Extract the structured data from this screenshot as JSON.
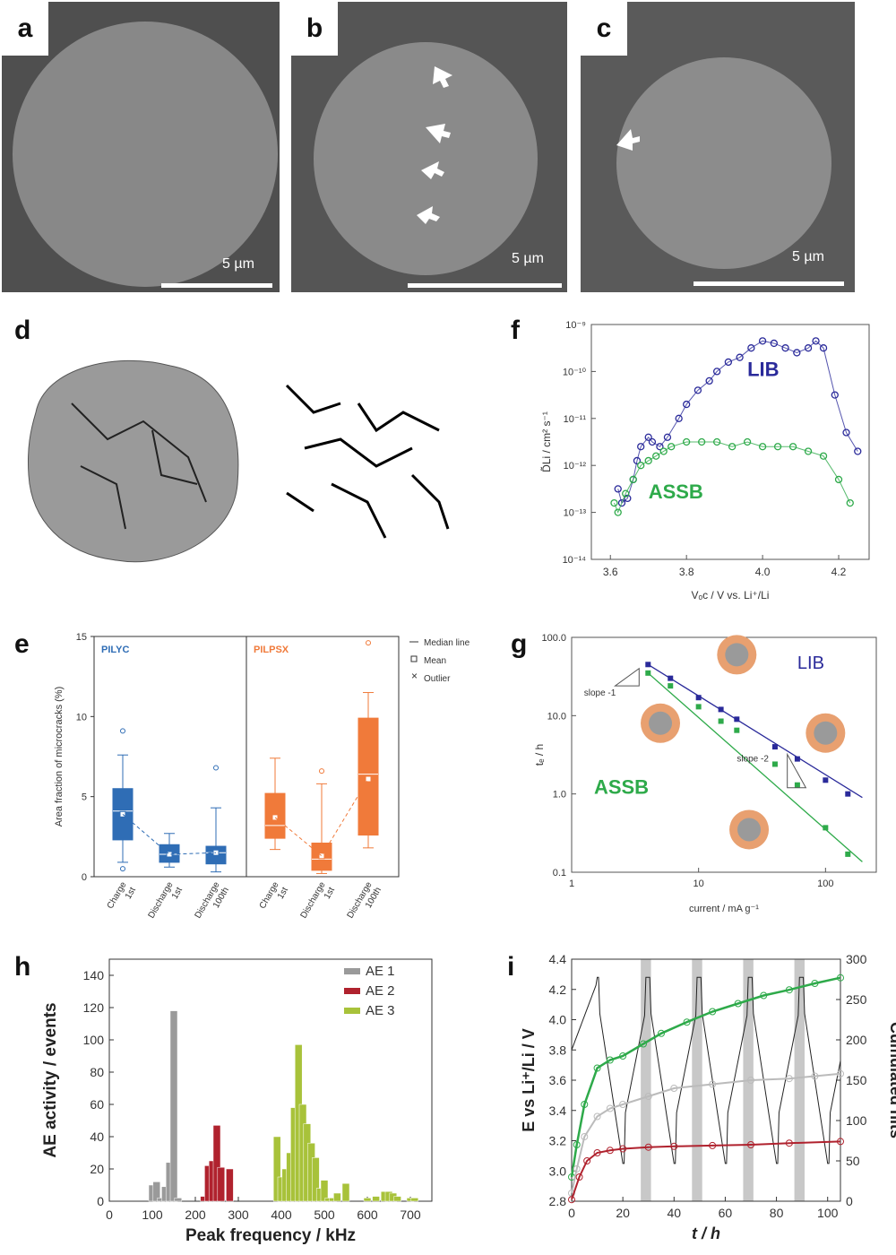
{
  "sem_panels": [
    {
      "label": "a",
      "scale": "5 µm"
    },
    {
      "label": "b",
      "scale": "5 µm"
    },
    {
      "label": "c",
      "scale": "5 µm"
    }
  ],
  "panel_d": {
    "label": "d"
  },
  "colors": {
    "blue": "#2f6db5",
    "orange": "#f07a3a",
    "navy": "#2a2a9a",
    "green": "#2eaa4a",
    "gray": "#9a9a9a",
    "red": "#b0222e",
    "lime": "#a8c23a"
  },
  "chart_data": [
    {
      "id": "e",
      "type": "box",
      "ylabel": "Area fraction of microcracks (%)",
      "ylim": [
        0,
        15
      ],
      "yticks": [
        0,
        5,
        10,
        15
      ],
      "groups": [
        {
          "name": "PILYC",
          "categories": [
            "Charge\n1st",
            "Discharge\n1st",
            "Discharge\n100th"
          ],
          "boxes": [
            {
              "q1": 2.3,
              "median": 4.1,
              "q3": 5.5,
              "wlo": 0.9,
              "whi": 7.6,
              "mean": 3.9,
              "outliers": [
                0.5,
                9.1
              ]
            },
            {
              "q1": 0.9,
              "median": 1.4,
              "q3": 2.0,
              "wlo": 0.6,
              "whi": 2.7,
              "mean": 1.4,
              "outliers": []
            },
            {
              "q1": 0.8,
              "median": 1.5,
              "q3": 1.9,
              "wlo": 0.3,
              "whi": 4.3,
              "mean": 1.5,
              "outliers": [
                6.8
              ]
            }
          ]
        },
        {
          "name": "PILPSX",
          "categories": [
            "Charge\n1st",
            "Discharge\n1st",
            "Discharge\n100th"
          ],
          "boxes": [
            {
              "q1": 2.4,
              "median": 3.2,
              "q3": 5.2,
              "wlo": 1.7,
              "whi": 7.4,
              "mean": 3.7,
              "outliers": []
            },
            {
              "q1": 0.4,
              "median": 1.1,
              "q3": 2.1,
              "wlo": 0.2,
              "whi": 5.8,
              "mean": 1.3,
              "outliers": [
                6.6
              ]
            },
            {
              "q1": 2.6,
              "median": 6.4,
              "q3": 9.9,
              "wlo": 1.8,
              "whi": 11.5,
              "mean": 6.1,
              "outliers": [
                14.6
              ]
            }
          ]
        }
      ],
      "legend": [
        "Median line",
        "Mean",
        "Outlier"
      ]
    },
    {
      "id": "f",
      "type": "scatter",
      "xlabel": "Vₒᴄ / V vs. Li⁺/Li",
      "ylabel": "D̃Li / cm² s⁻¹",
      "xlim": [
        3.55,
        4.28
      ],
      "xticks": [
        "3.6",
        "3.8",
        "4.0",
        "4.2"
      ],
      "yticklabels": [
        "10⁻¹⁴",
        "10⁻¹³",
        "10⁻¹²",
        "10⁻¹¹",
        "10⁻¹⁰",
        "10⁻⁹"
      ],
      "ylog": [
        -14,
        -9
      ],
      "annotations": [
        "LIB",
        "ASSB"
      ],
      "series": [
        {
          "name": "LIB",
          "x": [
            3.62,
            3.63,
            3.645,
            3.66,
            3.67,
            3.68,
            3.7,
            3.71,
            3.73,
            3.75,
            3.78,
            3.8,
            3.83,
            3.86,
            3.88,
            3.91,
            3.94,
            3.97,
            4.0,
            4.03,
            4.06,
            4.09,
            4.12,
            4.14,
            4.16,
            4.19,
            4.22,
            4.25
          ],
          "logy": [
            -12.5,
            -12.8,
            -12.7,
            -12.3,
            -11.9,
            -11.6,
            -11.4,
            -11.5,
            -11.6,
            -11.4,
            -11.0,
            -10.7,
            -10.4,
            -10.2,
            -10.0,
            -9.8,
            -9.7,
            -9.5,
            -9.35,
            -9.4,
            -9.5,
            -9.6,
            -9.5,
            -9.35,
            -9.5,
            -10.5,
            -11.3,
            -11.7
          ]
        },
        {
          "name": "ASSB",
          "x": [
            3.61,
            3.62,
            3.64,
            3.66,
            3.68,
            3.7,
            3.72,
            3.74,
            3.76,
            3.8,
            3.84,
            3.88,
            3.92,
            3.96,
            4.0,
            4.04,
            4.08,
            4.12,
            4.16,
            4.2,
            4.23
          ],
          "logy": [
            -12.8,
            -13.0,
            -12.6,
            -12.3,
            -12.0,
            -11.9,
            -11.8,
            -11.7,
            -11.6,
            -11.5,
            -11.5,
            -11.5,
            -11.6,
            -11.5,
            -11.6,
            -11.6,
            -11.6,
            -11.7,
            -11.8,
            -12.3,
            -12.8
          ]
        }
      ]
    },
    {
      "id": "g",
      "type": "scatter",
      "xlabel": "current / mA g⁻¹",
      "ylabel": "tₑ / h",
      "xlog": [
        0,
        2.4
      ],
      "xticklabels": [
        "1",
        "10",
        "100"
      ],
      "ylog": [
        -1,
        2
      ],
      "yticklabels": [
        "0.1",
        "1.0",
        "10.0",
        "100.0"
      ],
      "annotations": [
        "LIB",
        "ASSB",
        "slope -1",
        "slope -2"
      ],
      "series": [
        {
          "name": "LIB",
          "x": [
            4,
            6,
            10,
            15,
            20,
            40,
            60,
            100,
            150
          ],
          "y": [
            45,
            30,
            17,
            12,
            9,
            4,
            2.8,
            1.5,
            1.0
          ]
        },
        {
          "name": "ASSB",
          "x": [
            4,
            6,
            10,
            15,
            20,
            40,
            60,
            100,
            150
          ],
          "y": [
            35,
            24,
            13,
            8.5,
            6.5,
            2.4,
            1.3,
            0.37,
            0.17
          ]
        }
      ]
    },
    {
      "id": "h",
      "type": "bar",
      "xlabel": "Peak frequency / kHz",
      "ylabel": "AE activity / events",
      "xlim": [
        0,
        750
      ],
      "xticks": [
        0,
        100,
        200,
        300,
        400,
        500,
        600,
        700
      ],
      "ylim": [
        0,
        150
      ],
      "yticks": [
        0,
        20,
        40,
        60,
        80,
        100,
        120,
        140
      ],
      "series": [
        {
          "name": "AE 1",
          "x": [
            100,
            110,
            120,
            130,
            140,
            150,
            160
          ],
          "values": [
            10,
            12,
            2,
            9,
            24,
            118,
            2
          ]
        },
        {
          "name": "AE 2",
          "x": [
            220,
            230,
            240,
            250,
            260,
            280
          ],
          "values": [
            3,
            22,
            25,
            47,
            21,
            20
          ]
        },
        {
          "name": "AE 3",
          "x": [
            390,
            400,
            410,
            420,
            430,
            440,
            450,
            460,
            470,
            480,
            490,
            500,
            510,
            520,
            530,
            550,
            600,
            620,
            640,
            650,
            660,
            670,
            700,
            710
          ],
          "values": [
            40,
            15,
            20,
            30,
            58,
            97,
            60,
            48,
            36,
            27,
            8,
            13,
            2,
            2,
            5,
            11,
            2,
            3,
            6,
            6,
            5,
            3,
            2,
            2
          ]
        }
      ]
    },
    {
      "id": "i",
      "type": "line",
      "xlabel": "t / h",
      "ylabel": "E vs Li⁺/Li / V",
      "y2label": "Cumulated hits",
      "xlim": [
        0,
        105
      ],
      "xticks": [
        0,
        20,
        40,
        60,
        80,
        100
      ],
      "ylim": [
        2.8,
        4.4
      ],
      "yticks": [
        "2.8",
        "3.0",
        "3.2",
        "3.4",
        "3.6",
        "3.8",
        "4.0",
        "4.2",
        "4.4"
      ],
      "y2lim": [
        0,
        300
      ],
      "y2ticks": [
        0,
        50,
        100,
        150,
        200,
        250,
        300
      ],
      "shaded_x": [
        [
          27,
          31
        ],
        [
          47,
          51
        ],
        [
          67,
          71
        ],
        [
          87,
          91
        ]
      ],
      "series": [
        {
          "name": "green",
          "x": [
            0,
            2,
            5,
            10,
            15,
            20,
            28,
            35,
            45,
            55,
            65,
            75,
            85,
            95,
            105
          ],
          "y2": [
            30,
            70,
            120,
            165,
            175,
            180,
            195,
            208,
            222,
            235,
            245,
            255,
            262,
            270,
            277
          ]
        },
        {
          "name": "gray",
          "x": [
            0,
            2,
            5,
            10,
            15,
            20,
            30,
            40,
            55,
            70,
            85,
            95,
            105
          ],
          "y2": [
            10,
            40,
            80,
            105,
            115,
            120,
            130,
            140,
            145,
            150,
            152,
            155,
            158
          ]
        },
        {
          "name": "red",
          "x": [
            0,
            3,
            6,
            10,
            15,
            20,
            30,
            40,
            55,
            70,
            85,
            105
          ],
          "y2": [
            2,
            30,
            50,
            60,
            63,
            65,
            67,
            68,
            69,
            70,
            72,
            74
          ]
        }
      ]
    }
  ]
}
